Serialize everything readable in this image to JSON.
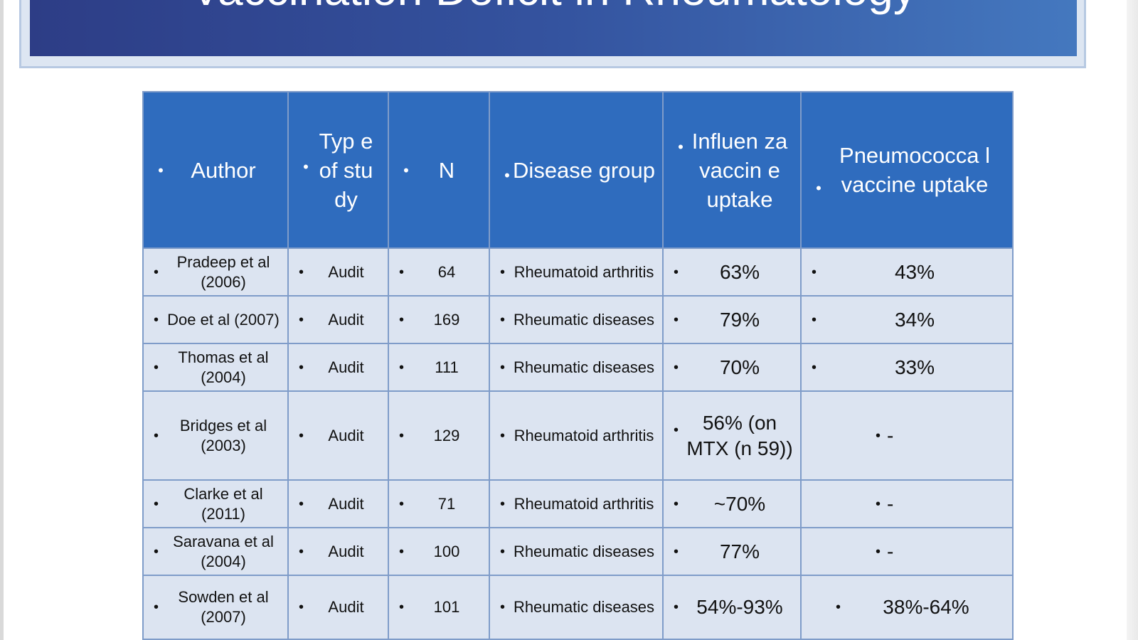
{
  "slide": {
    "title": "Vaccination Deficit in Rheumatology"
  },
  "table": {
    "bullet": "•",
    "columns": [
      "Author",
      "Typ e of stu dy",
      "N",
      "Disease group",
      "Influen za vaccin e uptake",
      "Pneumococca l vaccine uptake"
    ],
    "rows": [
      {
        "author": "Pradeep et al (2006)",
        "type": "Audit",
        "n": "64",
        "disease": "Rheumatoid arthritis",
        "influenza": "63%",
        "pneumococcal": "43%"
      },
      {
        "author": "Doe et al (2007)",
        "type": "Audit",
        "n": "169",
        "disease": "Rheumatic diseases",
        "influenza": "79%",
        "pneumococcal": "34%"
      },
      {
        "author": "Thomas et al (2004)",
        "type": "Audit",
        "n": "111",
        "disease": "Rheumatic diseases",
        "influenza": "70%",
        "pneumococcal": "33%"
      },
      {
        "author": "Bridges et al (2003)",
        "type": "Audit",
        "n": "129",
        "disease": "Rheumatoid arthritis",
        "influenza": "56% (on MTX (n 59))",
        "pneumococcal": "-"
      },
      {
        "author": "Clarke et al (2011)",
        "type": "Audit",
        "n": "71",
        "disease": "Rheumatoid arthritis",
        "influenza": "~70%",
        "pneumococcal": "-"
      },
      {
        "author": "Saravana et al (2004)",
        "type": "Audit",
        "n": "100",
        "disease": "Rheumatic diseases",
        "influenza": "77%",
        "pneumococcal": "-"
      },
      {
        "author": "Sowden et al (2007)",
        "type": "Audit",
        "n": "101",
        "disease": "Rheumatic diseases",
        "influenza": "54%-93%",
        "pneumococcal": "38%-64%"
      }
    ]
  },
  "colors": {
    "title_bar_start": "#2d3d86",
    "title_bar_end": "#4478bf",
    "header_bg": "#2f6cbe",
    "row_bg": "#dce4f1",
    "grid": "#7f9cc9"
  }
}
